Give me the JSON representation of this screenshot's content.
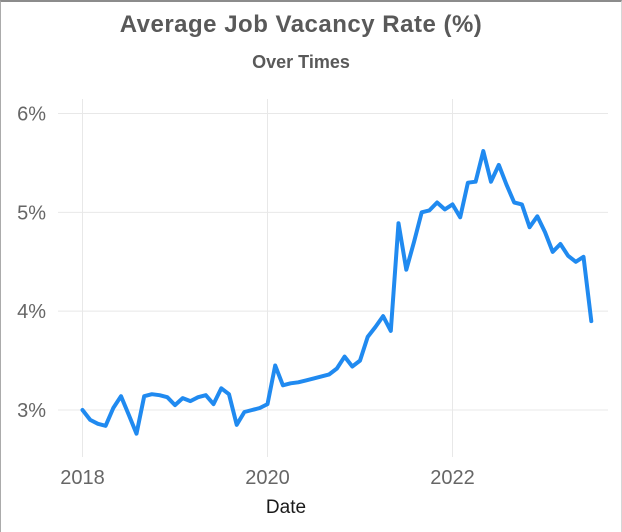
{
  "colors": {
    "line": "#208af0",
    "grid": "#e8e8e8",
    "tick_text": "#666666",
    "title_text": "#595959",
    "axis_title_text": "#1a1a1a",
    "background": "#ffffff",
    "border_top": "#8c8c8c"
  },
  "chart_data": {
    "type": "line",
    "title": "Average Job Vacancy Rate (%)",
    "subtitle": "Over Times",
    "xlabel": "Date",
    "ylabel": "",
    "grid": true,
    "legend": false,
    "x_ticks_years": [
      2018,
      2020,
      2022
    ],
    "x_tick_labels": [
      "2018",
      "2020",
      "2022"
    ],
    "y_ticks_pct": [
      6,
      5,
      4,
      3
    ],
    "y_tick_labels": [
      "6%",
      "5%",
      "4%",
      "3%"
    ],
    "ylim": [
      2.5,
      6.15
    ],
    "xlim_years": [
      2017.73,
      2023.68
    ],
    "series": [
      {
        "name": "Average Job Vacancy Rate",
        "frequency": "monthly",
        "start_month": "2018-01",
        "end_month": "2023-07",
        "values": [
          3.0,
          2.9,
          2.86,
          2.84,
          3.02,
          3.14,
          2.95,
          2.76,
          3.14,
          3.16,
          3.15,
          3.13,
          3.05,
          3.12,
          3.09,
          3.13,
          3.15,
          3.06,
          3.22,
          3.16,
          2.85,
          2.98,
          3.0,
          3.02,
          3.06,
          3.45,
          3.25,
          3.27,
          3.28,
          3.3,
          3.32,
          3.34,
          3.36,
          3.42,
          3.54,
          3.44,
          3.5,
          3.74,
          3.84,
          3.95,
          3.8,
          4.89,
          4.42,
          4.7,
          5.0,
          5.02,
          5.1,
          5.03,
          5.08,
          4.95,
          5.3,
          5.31,
          5.62,
          5.31,
          5.48,
          5.28,
          5.1,
          5.08,
          4.85,
          4.96,
          4.8,
          4.6,
          4.68,
          4.56,
          4.5,
          4.55,
          3.9
        ]
      }
    ]
  }
}
